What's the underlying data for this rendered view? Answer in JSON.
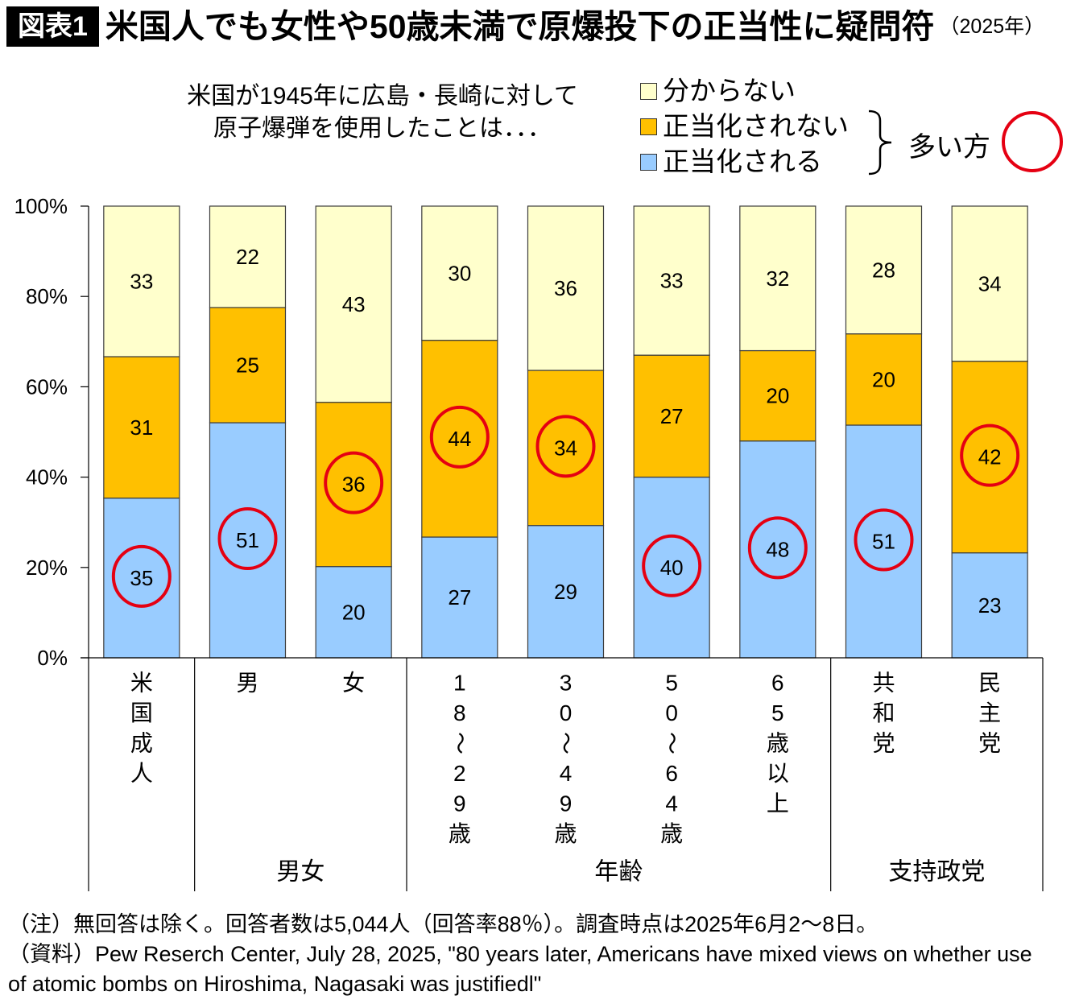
{
  "header": {
    "badge": "図表1",
    "title": "米国人でも女性や50歳未満で原爆投下の正当性に疑問符",
    "year": "（2025年）"
  },
  "question": {
    "line1": "米国が1945年に広島・長崎に対して",
    "line2": "原子爆弾を使用したことは．．．"
  },
  "legend": {
    "note_label": "多い方"
  },
  "chart_data": {
    "type": "bar",
    "stacked": "percent",
    "categories": [
      "米国成人",
      "男",
      "女",
      "18～29歳",
      "30～49歳",
      "50～64歳",
      "65歳以上",
      "共和党",
      "民主党"
    ],
    "groups": [
      {
        "label": "",
        "members": [
          "米国成人"
        ]
      },
      {
        "label": "男女",
        "members": [
          "男",
          "女"
        ]
      },
      {
        "label": "年齢",
        "members": [
          "18～29歳",
          "30～49歳",
          "50～64歳",
          "65歳以上"
        ]
      },
      {
        "label": "支持政党",
        "members": [
          "共和党",
          "民主党"
        ]
      }
    ],
    "series": [
      {
        "name": "正当化される",
        "color": "#99ccff",
        "values": [
          35,
          51,
          20,
          27,
          29,
          40,
          48,
          51,
          23
        ]
      },
      {
        "name": "正当化されない",
        "color": "#ffc000",
        "values": [
          31,
          25,
          36,
          44,
          34,
          27,
          20,
          20,
          42
        ]
      },
      {
        "name": "分からない",
        "color": "#ffffcc",
        "values": [
          33,
          22,
          43,
          30,
          36,
          33,
          32,
          28,
          34
        ]
      }
    ],
    "y_ticks": [
      0,
      20,
      40,
      60,
      80,
      100
    ],
    "y_tick_labels": [
      "0%",
      "20%",
      "40%",
      "60%",
      "80%",
      "100%"
    ],
    "ylim": [
      0,
      100
    ],
    "grid": false,
    "legend_position": "top-right",
    "highlight_color": "#e50012"
  },
  "notes": {
    "note": "（注）無回答は除く。回答者数は5,044人（回答率88％）。調査時点は2025年6月2～8日。",
    "source": "（資料）Pew Reserch Center, July 28, 2025, \"80 years later, Americans have mixed views on whether use of atomic bombs on Hiroshima, Nagasaki was justifiedl\""
  }
}
